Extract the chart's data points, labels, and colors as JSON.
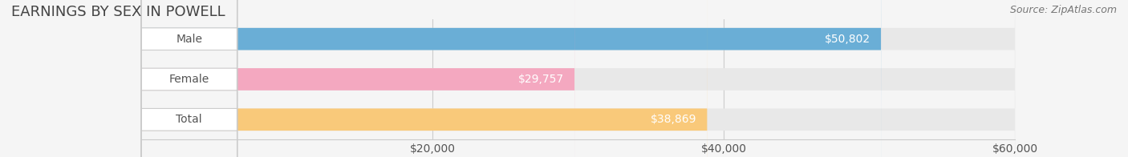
{
  "title": "EARNINGS BY SEX IN POWELL",
  "source": "Source: ZipAtlas.com",
  "categories": [
    "Male",
    "Female",
    "Total"
  ],
  "values": [
    50802,
    29757,
    38869
  ],
  "bar_colors": [
    "#6aaed6",
    "#f4a8c0",
    "#f9c97a"
  ],
  "bar_bg_color": "#e8e8e8",
  "bar_height": 0.55,
  "xlim": [
    0,
    60000
  ],
  "x_axis_start": 20000,
  "xticks": [
    20000,
    40000,
    60000
  ],
  "xtick_labels": [
    "$20,000",
    "$40,000",
    "$60,000"
  ],
  "title_fontsize": 13,
  "label_fontsize": 10,
  "value_fontsize": 10,
  "source_fontsize": 9,
  "background_color": "#f5f5f5",
  "label_box_color": "#ffffff",
  "label_text_color": "#555555",
  "value_text_color_inside": "#ffffff",
  "value_text_color_outside": "#555555",
  "grid_color": "#cccccc",
  "axis_label_color": "#555555"
}
